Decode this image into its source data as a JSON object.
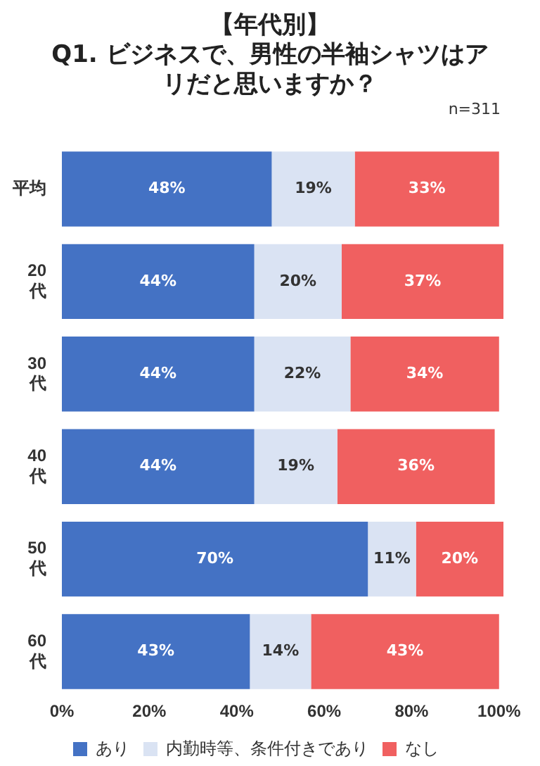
{
  "chart_data": {
    "type": "bar",
    "orientation": "horizontal",
    "stacked": true,
    "title": "【年代別】",
    "subtitle": "Q1. ビジネスで、男性の半袖シャツはアリだと思いますか？",
    "annotations": [
      "n=311"
    ],
    "categories": [
      "平均",
      "20代",
      "30代",
      "40代",
      "50代",
      "60代"
    ],
    "series": [
      {
        "name": "あり",
        "color": "#4472c4",
        "values": [
          48,
          44,
          44,
          44,
          70,
          43
        ],
        "value_labels": [
          "48%",
          "44%",
          "44%",
          "44%",
          "70%",
          "43%"
        ]
      },
      {
        "name": "内勤時等、条件付きであり",
        "color": "#dae3f3",
        "values": [
          19,
          20,
          22,
          19,
          11,
          14
        ],
        "value_labels": [
          "19%",
          "20%",
          "22%",
          "19%",
          "11%",
          "14%"
        ]
      },
      {
        "name": "なし",
        "color": "#f06060",
        "values": [
          33,
          37,
          34,
          36,
          20,
          43
        ],
        "value_labels": [
          "33%",
          "37%",
          "34%",
          "36%",
          "20%",
          "43%"
        ]
      }
    ],
    "xlim": [
      0,
      101
    ],
    "xticks": [
      {
        "value": 0,
        "label": "0%"
      },
      {
        "value": 20,
        "label": "20%"
      },
      {
        "value": 40,
        "label": "40%"
      },
      {
        "value": 60,
        "label": "60%"
      },
      {
        "value": 80,
        "label": "80%"
      },
      {
        "value": 100,
        "label": "100%"
      }
    ],
    "grid": false,
    "legend": "bottom"
  }
}
